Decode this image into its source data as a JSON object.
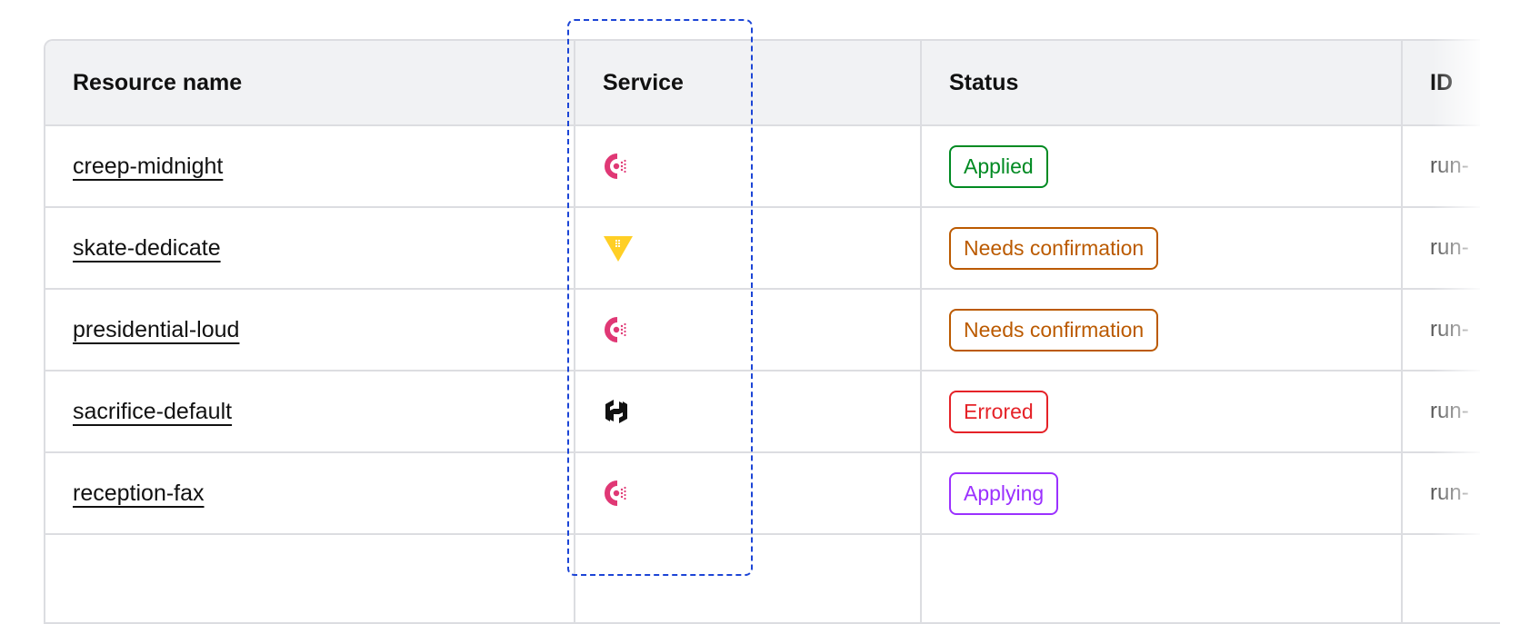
{
  "table": {
    "headers": [
      "Resource name",
      "Service",
      "Status",
      "ID"
    ],
    "rows": [
      {
        "name": "creep-midnight",
        "service": "consul-icon",
        "status": "Applied",
        "status_color": "#008a22",
        "id": "run-"
      },
      {
        "name": "skate-dedicate",
        "service": "vault-icon",
        "status": "Needs confirmation",
        "status_color": "#bb5a00",
        "id": "run-"
      },
      {
        "name": "presidential-loud",
        "service": "consul-icon",
        "status": "Needs confirmation",
        "status_color": "#bb5a00",
        "id": "run-"
      },
      {
        "name": "sacrifice-default",
        "service": "hashicorp-icon",
        "status": "Errored",
        "status_color": "#e52228",
        "id": "run-"
      },
      {
        "name": "reception-fax",
        "service": "consul-icon",
        "status": "Applying",
        "status_color": "#9b31ff",
        "id": "run-"
      }
    ]
  },
  "colors": {
    "consul": "#e03875",
    "vault": "#ffcf25",
    "focus_outline": "#1c45d6"
  }
}
